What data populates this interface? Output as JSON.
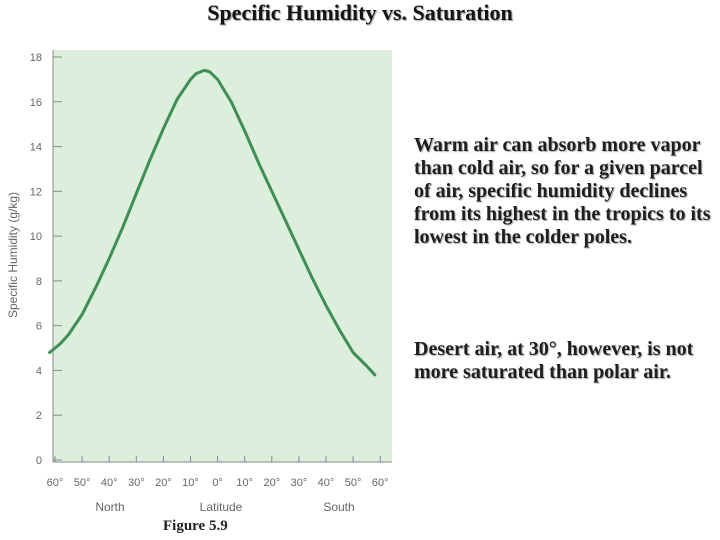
{
  "slide": {
    "title": "Specific Humidity vs. Saturation",
    "paragraph1": "Warm air can absorb more vapor than cold air, so for a given parcel of air, specific humidity declines from its highest in the tropics to its lowest in the colder poles.",
    "paragraph2": " Desert air, at 30°, however, is not more saturated than polar air.",
    "figure_label": "Figure 5.9"
  },
  "colors": {
    "plot_background": "#dcefdc",
    "line": "#3e8e55",
    "axis": "#8a8a8a"
  },
  "chart_data": {
    "type": "line",
    "title": "",
    "xlabel": "Latitude",
    "ylabel": "Specific Humidity (g/kg)",
    "x_tick_labels": [
      "60°",
      "50°",
      "40°",
      "30°",
      "20°",
      "10°",
      "0°",
      "10°",
      "20°",
      "30°",
      "40°",
      "50°",
      "60°"
    ],
    "region_labels": [
      "North",
      "South"
    ],
    "y_ticks": [
      0,
      2,
      4,
      6,
      8,
      10,
      12,
      14,
      16,
      18
    ],
    "xlim": [
      -60,
      60
    ],
    "ylim": [
      0,
      18
    ],
    "grid": false,
    "series": [
      {
        "name": "",
        "x": [
          -62,
          -58,
          -55,
          -50,
          -45,
          -40,
          -35,
          -30,
          -25,
          -20,
          -15,
          -10,
          -8,
          -5,
          -3,
          0,
          5,
          10,
          15,
          20,
          25,
          30,
          35,
          40,
          45,
          50,
          55,
          58
        ],
        "y": [
          4.8,
          5.2,
          5.6,
          6.5,
          7.7,
          9.0,
          10.4,
          11.9,
          13.4,
          14.8,
          16.1,
          17.0,
          17.25,
          17.4,
          17.35,
          17.0,
          16.0,
          14.7,
          13.3,
          12.0,
          10.7,
          9.4,
          8.1,
          6.9,
          5.8,
          4.8,
          4.2,
          3.8
        ]
      }
    ]
  }
}
